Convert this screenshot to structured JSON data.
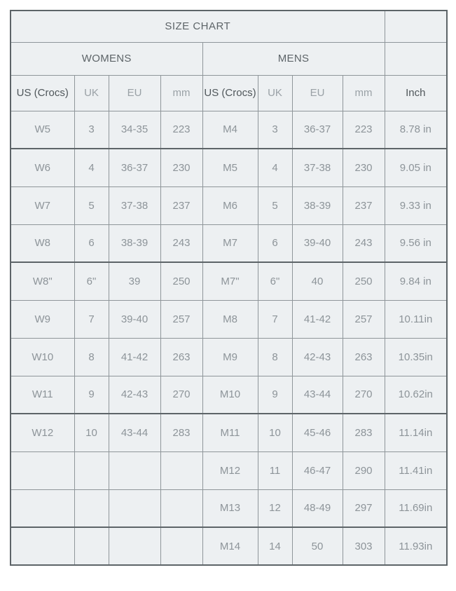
{
  "colors": {
    "page_background": "#ffffff",
    "cell_background": "#edf0f2",
    "border_thin": "#8f969a",
    "border_thick": "#5d6468",
    "text_title": "#5d6468",
    "text_header_strong": "#50575b",
    "text_header_light": "#9aa1a6",
    "text_data": "#8d9499"
  },
  "chart_data": {
    "type": "table",
    "title": "SIZE CHART",
    "section_labels": [
      "WOMENS",
      "MENS"
    ],
    "headers": [
      "US (Crocs)",
      "UK",
      "EU",
      "mm",
      "US (Crocs)",
      "UK",
      "EU",
      "mm",
      "Inch"
    ],
    "rows": [
      [
        "W5",
        "3",
        "34-35",
        "223",
        "M4",
        "3",
        "36-37",
        "223",
        "8.78 in"
      ],
      [
        "W6",
        "4",
        "36-37",
        "230",
        "M5",
        "4",
        "37-38",
        "230",
        "9.05 in"
      ],
      [
        "W7",
        "5",
        "37-38",
        "237",
        "M6",
        "5",
        "38-39",
        "237",
        "9.33 in"
      ],
      [
        "W8",
        "6",
        "38-39",
        "243",
        "M7",
        "6",
        "39-40",
        "243",
        "9.56 in"
      ],
      [
        "W8\"",
        "6\"",
        "39",
        "250",
        "M7\"",
        "6\"",
        "40",
        "250",
        "9.84 in"
      ],
      [
        "W9",
        "7",
        "39-40",
        "257",
        "M8",
        "7",
        "41-42",
        "257",
        "10.11in"
      ],
      [
        "W10",
        "8",
        "41-42",
        "263",
        "M9",
        "8",
        "42-43",
        "263",
        "10.35in"
      ],
      [
        "W11",
        "9",
        "42-43",
        "270",
        "M10",
        "9",
        "43-44",
        "270",
        "10.62in"
      ],
      [
        "W12",
        "10",
        "43-44",
        "283",
        "M11",
        "10",
        "45-46",
        "283",
        "11.14in"
      ],
      [
        "",
        "",
        "",
        "",
        "M12",
        "11",
        "46-47",
        "290",
        "11.41in"
      ],
      [
        "",
        "",
        "",
        "",
        "M13",
        "12",
        "48-49",
        "297",
        "11.69in"
      ],
      [
        "",
        "",
        "",
        "",
        "M14",
        "14",
        "50",
        "303",
        "11.93in"
      ]
    ]
  }
}
